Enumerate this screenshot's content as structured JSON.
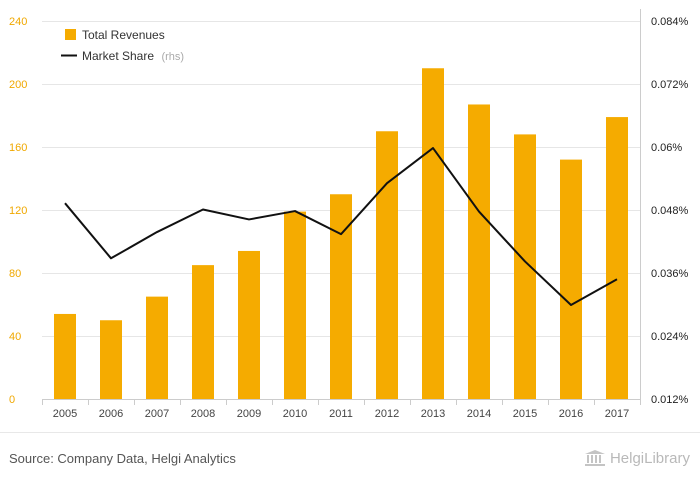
{
  "chart_data": {
    "type": "bar",
    "categories": [
      "2005",
      "2006",
      "2007",
      "2008",
      "2009",
      "2010",
      "2011",
      "2012",
      "2013",
      "2014",
      "2015",
      "2016",
      "2017"
    ],
    "series": [
      {
        "name": "Total Revenues",
        "type": "bar",
        "axis": "left",
        "color": "#f5ab00",
        "values": [
          54,
          50,
          65,
          85,
          94,
          119,
          130,
          170,
          210,
          187,
          168,
          152,
          179
        ]
      },
      {
        "name": "Market Share",
        "type": "line",
        "axis": "right",
        "color": "#111111",
        "values": [
          0.0493,
          0.0388,
          0.0438,
          0.0481,
          0.0462,
          0.0478,
          0.0434,
          0.0531,
          0.0598,
          0.0477,
          0.0382,
          0.0299,
          0.0348
        ]
      }
    ],
    "legend_note": "(rhs)",
    "y_left": {
      "lim": [
        0,
        240
      ],
      "ticks": [
        "0",
        "40",
        "80",
        "120",
        "160",
        "200",
        "240"
      ],
      "tick_values": [
        0,
        40,
        80,
        120,
        160,
        200,
        240
      ]
    },
    "y_right": {
      "lim": [
        0.012,
        0.084
      ],
      "ticks": [
        "0.012%",
        "0.024%",
        "0.036%",
        "0.048%",
        "0.06%",
        "0.072%",
        "0.084%"
      ],
      "tick_values": [
        0.012,
        0.024,
        0.036,
        0.048,
        0.06,
        0.072,
        0.084
      ]
    },
    "grid": true,
    "legend_position": "top-left"
  },
  "footer": {
    "source": "Source: Company Data, Helgi Analytics",
    "brand_name": "HelgiLibrary"
  }
}
